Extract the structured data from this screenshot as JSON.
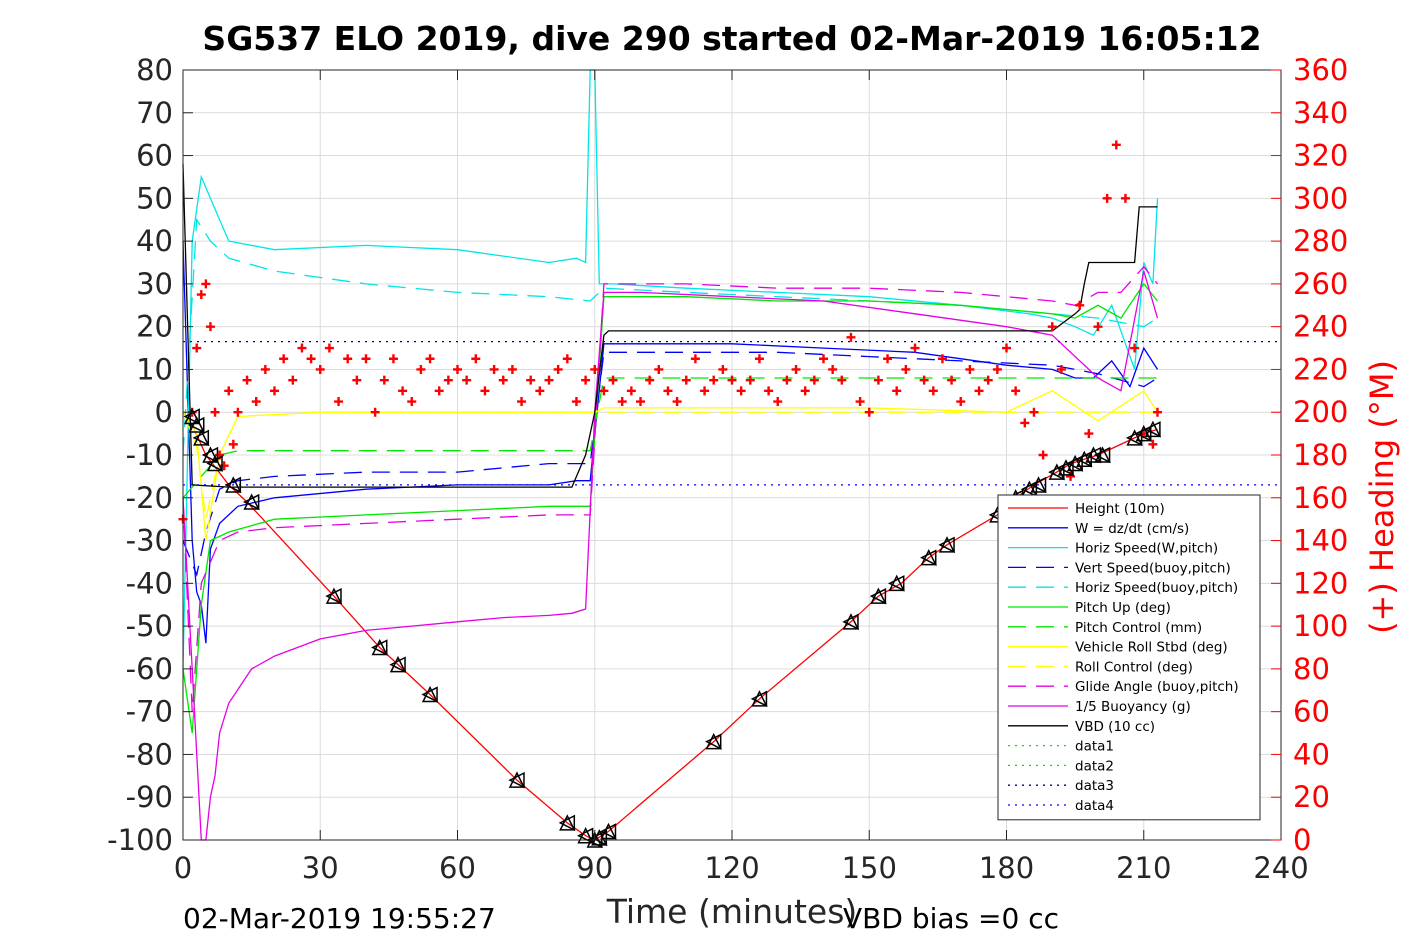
{
  "chart_data": {
    "type": "line",
    "title": "SG537 ELO 2019, dive 290 started 02-Mar-2019 16:05:12",
    "xlabel": "Time (minutes)",
    "ylabel": "",
    "y2label": "(+) Heading (°M)",
    "footer_left": "02-Mar-2019 19:55:27",
    "footer_right": "VBD bias =0 cc",
    "xlim": [
      0,
      240
    ],
    "ylim": [
      -100,
      80
    ],
    "y2lim": [
      0,
      360
    ],
    "xticks": [
      0,
      30,
      60,
      90,
      120,
      150,
      180,
      210,
      240
    ],
    "yticks": [
      80,
      70,
      60,
      50,
      40,
      30,
      20,
      10,
      0,
      -10,
      -20,
      -30,
      -40,
      -50,
      -60,
      -70,
      -80,
      -90,
      -100
    ],
    "y2ticks": [
      360,
      340,
      320,
      300,
      280,
      260,
      240,
      220,
      200,
      180,
      160,
      140,
      120,
      100,
      80,
      60,
      40,
      20,
      0
    ],
    "grid": true,
    "legend_position": "bottom-right",
    "colors": {
      "axis": "#262626",
      "right_axis": "#ff0000",
      "grid": "#dcdcdc"
    },
    "series": [
      {
        "name": "Height (10m)",
        "color": "#ff0000",
        "dash": "solid",
        "x": [
          0,
          2,
          5,
          10,
          14,
          33,
          43,
          47,
          54,
          73,
          84,
          88,
          90,
          93,
          116,
          126,
          146,
          152,
          157,
          163,
          167,
          178,
          182,
          186,
          191,
          194,
          197,
          200,
          208,
          210,
          213
        ],
        "y": [
          0,
          -3,
          -10,
          -17,
          -21,
          -43,
          -55,
          -59,
          -66,
          -86,
          -96,
          -99,
          -100,
          -98,
          -77,
          -67,
          -49,
          -43,
          -40,
          -34,
          -31,
          -24,
          -20,
          -17,
          -14,
          -12,
          -11,
          -10,
          -6,
          -5,
          -4
        ]
      },
      {
        "name": "W = dz/dt (cm/s)",
        "color": "#0000ff",
        "dash": "solid",
        "x": [
          0,
          2,
          3,
          4,
          5,
          6,
          8,
          12,
          20,
          40,
          60,
          80,
          86,
          89,
          92,
          100,
          120,
          140,
          160,
          180,
          190,
          195,
          199,
          203,
          207,
          210,
          213
        ],
        "y": [
          40,
          -30,
          -42,
          -45,
          -54,
          -32,
          -26,
          -22,
          -20,
          -18,
          -17,
          -17,
          -16,
          -16,
          16,
          16,
          16,
          15,
          14,
          11,
          10,
          8,
          8,
          12,
          6,
          15,
          10
        ]
      },
      {
        "name": "Horiz Speed(W,pitch)",
        "color": "#00e6e6",
        "dash": "solid",
        "x": [
          0,
          2,
          4,
          6,
          10,
          20,
          40,
          60,
          80,
          86,
          88,
          89,
          90,
          91,
          94,
          110,
          130,
          150,
          170,
          185,
          190,
          195,
          199,
          203,
          208,
          210,
          212,
          213
        ],
        "y": [
          -60,
          40,
          55,
          50,
          40,
          38,
          39,
          38,
          35,
          36,
          35,
          80,
          80,
          30,
          30,
          29,
          28,
          27,
          25,
          23,
          22,
          20,
          18,
          25,
          10,
          35,
          30,
          50
        ]
      },
      {
        "name": "Vert Speed(buoy,pitch)",
        "color": "#0000ff",
        "dash": "dashed",
        "x": [
          0,
          3,
          5,
          8,
          12,
          20,
          40,
          60,
          80,
          89,
          92,
          110,
          130,
          150,
          170,
          190,
          200,
          210,
          213
        ],
        "y": [
          -30,
          -38,
          -28,
          -18,
          -16,
          -15,
          -14,
          -14,
          -12,
          -12,
          14,
          14,
          14,
          13,
          12,
          11,
          9,
          6,
          8
        ]
      },
      {
        "name": "Horiz Speed(buoy,pitch)",
        "color": "#00e6e6",
        "dash": "dashed",
        "x": [
          0,
          3,
          6,
          10,
          20,
          40,
          60,
          80,
          89,
          92,
          110,
          130,
          150,
          170,
          190,
          200,
          210,
          213
        ],
        "y": [
          -10,
          45,
          40,
          36,
          33,
          30,
          28,
          27,
          26,
          29,
          28,
          27,
          26,
          25,
          23,
          22,
          20,
          22
        ]
      },
      {
        "name": "Pitch Up (deg)",
        "color": "#00e600",
        "dash": "solid",
        "x": [
          0,
          2,
          4,
          6,
          10,
          20,
          40,
          60,
          80,
          89,
          92,
          110,
          130,
          150,
          170,
          190,
          195,
          200,
          205,
          210,
          213
        ],
        "y": [
          -60,
          -75,
          -45,
          -30,
          -28,
          -25,
          -24,
          -23,
          -22,
          -22,
          27,
          27,
          26,
          26,
          25,
          23,
          22,
          25,
          22,
          30,
          26
        ]
      },
      {
        "name": "Pitch Control (mm)",
        "color": "#00e600",
        "dash": "dashed",
        "x": [
          0,
          4,
          8,
          12,
          40,
          88,
          89,
          92,
          120,
          150,
          180,
          200,
          213
        ],
        "y": [
          -20,
          -15,
          -10,
          -9,
          -9,
          -9,
          -9,
          8,
          8,
          8,
          8,
          8,
          8
        ]
      },
      {
        "name": "Vehicle Roll Stbd (deg)",
        "color": "#ffff00",
        "dash": "solid",
        "x": [
          0,
          3,
          5,
          8,
          12,
          30,
          60,
          88,
          90,
          92,
          120,
          150,
          180,
          190,
          200,
          210,
          213
        ],
        "y": [
          0,
          -5,
          -30,
          -10,
          -1,
          0,
          0,
          0,
          0,
          1,
          1,
          1,
          0,
          5,
          -2,
          5,
          0
        ]
      },
      {
        "name": "Roll Control (deg)",
        "color": "#ffff00",
        "dash": "dashed",
        "x": [
          0,
          3,
          5,
          8,
          12,
          30,
          60,
          88,
          92,
          120,
          150,
          180,
          210,
          213
        ],
        "y": [
          0,
          -8,
          -25,
          -10,
          -1,
          0,
          0,
          0,
          0,
          0,
          0,
          0,
          0,
          0
        ]
      },
      {
        "name": "Glide Angle (buoy,pitch)",
        "color": "#e600e6",
        "dash": "dashed",
        "x": [
          0,
          2,
          4,
          8,
          12,
          20,
          40,
          60,
          80,
          89,
          92,
          110,
          130,
          150,
          170,
          190,
          195,
          200,
          205,
          210,
          213
        ],
        "y": [
          -20,
          -70,
          -40,
          -30,
          -28,
          -27,
          -26,
          -25,
          -24,
          -24,
          30,
          30,
          29,
          29,
          28,
          26,
          25,
          28,
          28,
          34,
          30
        ]
      },
      {
        "name": "1/5 Buoyancy (g)",
        "color": "#e600e6",
        "dash": "solid",
        "x": [
          0,
          2,
          4,
          5,
          6,
          7,
          8,
          10,
          15,
          20,
          30,
          40,
          50,
          60,
          70,
          80,
          85,
          88,
          90,
          92,
          100,
          120,
          140,
          160,
          180,
          190,
          200,
          205,
          210,
          213
        ],
        "y": [
          -20,
          -60,
          -100,
          -100,
          -90,
          -85,
          -75,
          -68,
          -60,
          -57,
          -53,
          -51,
          -50,
          -49,
          -48,
          -47.5,
          -47,
          -46,
          0,
          28,
          28,
          27,
          26,
          23,
          20,
          18,
          8,
          5,
          33,
          22
        ]
      },
      {
        "name": "VBD (10 cc)",
        "color": "#000000",
        "dash": "solid",
        "x": [
          0,
          2,
          10,
          12,
          80,
          85,
          88,
          90,
          92,
          93,
          100,
          140,
          180,
          190,
          195,
          196,
          197,
          198,
          200,
          205,
          208,
          209,
          210,
          213
        ],
        "y": [
          58,
          -17,
          -17.5,
          -17.5,
          -17.5,
          -17.5,
          -10,
          0,
          18,
          19,
          19,
          19,
          19,
          19,
          23,
          24,
          30,
          35,
          35,
          35,
          35,
          48,
          48,
          48
        ]
      },
      {
        "name": "data1",
        "color": "#00e600",
        "dash": "dotted",
        "x": [],
        "y": []
      },
      {
        "name": "data2",
        "color": "#00e600",
        "dash": "dotted",
        "x": [],
        "y": []
      },
      {
        "name": "data3",
        "color": "#00008b",
        "dash": "dotted",
        "x": [
          0,
          240
        ],
        "y": [
          16.5,
          16.5
        ]
      },
      {
        "name": "data4",
        "color": "#0000ff",
        "dash": "dotted",
        "x": [
          0,
          240
        ],
        "y": [
          -17,
          -17
        ]
      }
    ],
    "heading": {
      "axis": "right",
      "color": "#ff0000",
      "marker": "+",
      "x": [
        0,
        2,
        3,
        4,
        5,
        6,
        7,
        8,
        9,
        10,
        11,
        12,
        14,
        16,
        18,
        20,
        22,
        24,
        26,
        28,
        30,
        32,
        34,
        36,
        38,
        40,
        42,
        44,
        46,
        48,
        50,
        52,
        54,
        56,
        58,
        60,
        62,
        64,
        66,
        68,
        70,
        72,
        74,
        76,
        78,
        80,
        82,
        84,
        86,
        88,
        90,
        92,
        94,
        96,
        98,
        100,
        102,
        104,
        106,
        108,
        110,
        112,
        114,
        116,
        118,
        120,
        122,
        124,
        126,
        128,
        130,
        132,
        134,
        136,
        138,
        140,
        142,
        144,
        146,
        148,
        150,
        152,
        154,
        156,
        158,
        160,
        162,
        164,
        166,
        168,
        170,
        172,
        174,
        176,
        178,
        180,
        182,
        184,
        186,
        188,
        190,
        192,
        194,
        196,
        198,
        200,
        202,
        204,
        206,
        208,
        210,
        212,
        213
      ],
      "y": [
        150,
        200,
        230,
        255,
        260,
        240,
        200,
        180,
        175,
        210,
        185,
        200,
        215,
        205,
        220,
        210,
        225,
        215,
        230,
        225,
        220,
        230,
        205,
        225,
        215,
        225,
        200,
        215,
        225,
        210,
        205,
        220,
        225,
        210,
        215,
        220,
        215,
        225,
        210,
        220,
        215,
        220,
        205,
        215,
        210,
        215,
        220,
        225,
        205,
        215,
        220,
        210,
        215,
        205,
        210,
        205,
        215,
        220,
        210,
        205,
        215,
        225,
        210,
        215,
        220,
        215,
        210,
        215,
        225,
        210,
        205,
        215,
        220,
        210,
        215,
        225,
        220,
        215,
        235,
        205,
        200,
        215,
        225,
        210,
        220,
        230,
        215,
        210,
        225,
        215,
        205,
        220,
        210,
        215,
        220,
        230,
        210,
        195,
        200,
        180,
        240,
        220,
        170,
        250,
        190,
        240,
        300,
        325,
        300,
        230,
        190,
        185,
        200
      ]
    },
    "triangle_markers": {
      "color": "#000000",
      "x": [
        2,
        3,
        4,
        6,
        7,
        11,
        15,
        33,
        43,
        47,
        54,
        73,
        84,
        88,
        90,
        91,
        93,
        116,
        126,
        146,
        152,
        156,
        163,
        167,
        178,
        182,
        185,
        187,
        191,
        193,
        195,
        197,
        199,
        201,
        208,
        210,
        212
      ],
      "y": [
        -1,
        -3,
        -6,
        -10,
        -12,
        -17,
        -21,
        -43,
        -55,
        -59,
        -66,
        -86,
        -96,
        -99,
        -100,
        -99.5,
        -98,
        -77,
        -67,
        -49,
        -43,
        -40,
        -34,
        -31,
        -24,
        -20,
        -18,
        -17,
        -14,
        -13,
        -12,
        -11,
        -10,
        -10,
        -6,
        -5,
        -4
      ]
    }
  }
}
